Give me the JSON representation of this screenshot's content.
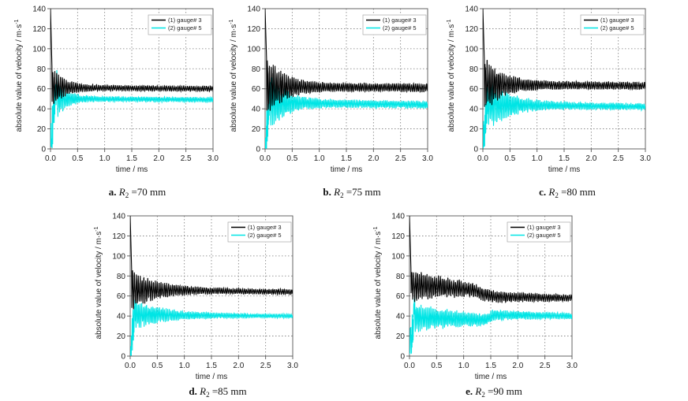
{
  "chart_data": [
    {
      "type": "line",
      "panel": "a",
      "caption": {
        "letter": "a.",
        "var": "R",
        "sub": "2",
        "text": " =70  mm"
      },
      "xlabel": "time / ms",
      "ylabel": "absolute value of velocity / m·s",
      "ylabel_sup": "-1",
      "xlim": [
        0,
        3.0
      ],
      "ylim": [
        0,
        140
      ],
      "xticks": [
        "0.0",
        "0.5",
        "1.0",
        "1.5",
        "2.0",
        "2.5",
        "3.0"
      ],
      "yticks": [
        "0",
        "20",
        "40",
        "60",
        "80",
        "100",
        "120",
        "140"
      ],
      "legend_position": "top-right",
      "series": [
        {
          "name": "(1) gauge# 3",
          "color": "#000000",
          "peak": 140,
          "steady": [
            [
              0.3,
              61
            ],
            [
              3.0,
              60
            ]
          ],
          "osc": 9,
          "decay": 0.22,
          "period": 0.035
        },
        {
          "name": "(2) gauge# 5",
          "color": "#00e5e5",
          "peak": 70,
          "rise": 0.12,
          "steady": [
            [
              0.3,
              50
            ],
            [
              3.0,
              49
            ]
          ],
          "osc": 8,
          "decay": 0.2,
          "period": 0.03
        }
      ]
    },
    {
      "type": "line",
      "panel": "b",
      "caption": {
        "letter": "b.",
        "var": "R",
        "sub": "2",
        "text": " =75  mm"
      },
      "xlabel": "time / ms",
      "ylabel": "absolute value of velocity / m·s",
      "ylabel_sup": "-1",
      "xlim": [
        0,
        3.0
      ],
      "ylim": [
        0,
        140
      ],
      "xticks": [
        "0.0",
        "0.5",
        "1.0",
        "1.5",
        "2.0",
        "2.5",
        "3.0"
      ],
      "yticks": [
        "0",
        "20",
        "40",
        "60",
        "80",
        "100",
        "120",
        "140"
      ],
      "legend_position": "top-right",
      "series": [
        {
          "name": "(1) gauge# 3",
          "color": "#000000",
          "peak": 140,
          "steady": [
            [
              0.3,
              62
            ],
            [
              3.0,
              61
            ]
          ],
          "osc": 14,
          "decay": 0.3,
          "period": 0.035
        },
        {
          "name": "(2) gauge# 5",
          "color": "#00e5e5",
          "peak": 58,
          "rise": 0.1,
          "steady": [
            [
              0.3,
              46
            ],
            [
              3.0,
              44
            ]
          ],
          "osc": 12,
          "decay": 0.3,
          "period": 0.03
        }
      ]
    },
    {
      "type": "line",
      "panel": "c",
      "caption": {
        "letter": "c.",
        "var": "R",
        "sub": "2",
        "text": " =80  mm"
      },
      "xlabel": "time / ms",
      "ylabel": "absolute value of velocity / m·s",
      "ylabel_sup": "-1",
      "xlim": [
        0,
        3.0
      ],
      "ylim": [
        0,
        140
      ],
      "xticks": [
        "0.0",
        "0.5",
        "1.0",
        "1.5",
        "2.0",
        "2.5",
        "3.0"
      ],
      "yticks": [
        "0",
        "20",
        "40",
        "60",
        "80",
        "100",
        "120",
        "140"
      ],
      "legend_position": "top-right",
      "series": [
        {
          "name": "(1) gauge# 3",
          "color": "#000000",
          "peak": 140,
          "steady": [
            [
              0.3,
              64
            ],
            [
              3.0,
              63
            ]
          ],
          "osc": 12,
          "decay": 0.35,
          "period": 0.035
        },
        {
          "name": "(2) gauge# 5",
          "color": "#00e5e5",
          "peak": 58,
          "rise": 0.1,
          "steady": [
            [
              0.3,
              44
            ],
            [
              3.0,
              42
            ]
          ],
          "osc": 11,
          "decay": 0.4,
          "period": 0.03
        }
      ]
    },
    {
      "type": "line",
      "panel": "d",
      "caption": {
        "letter": "d.",
        "var": "R",
        "sub": "2",
        "text": " =85  mm"
      },
      "xlabel": "time / ms",
      "ylabel": "absolute value of velocity / m·s",
      "ylabel_sup": "-1",
      "xlim": [
        0,
        3.0
      ],
      "ylim": [
        0,
        140
      ],
      "xticks": [
        "0.0",
        "0.5",
        "1.0",
        "1.5",
        "2.0",
        "2.5",
        "3.0"
      ],
      "yticks": [
        "0",
        "20",
        "40",
        "60",
        "80",
        "100",
        "120",
        "140"
      ],
      "legend_position": "top-right",
      "series": [
        {
          "name": "(1) gauge# 3",
          "color": "#000000",
          "peak": 140,
          "steady": [
            [
              0.3,
              66
            ],
            [
              3.0,
              64
            ]
          ],
          "osc": 9,
          "decay": 0.45,
          "period": 0.035
        },
        {
          "name": "(2) gauge# 5",
          "color": "#00e5e5",
          "peak": 52,
          "rise": 0.1,
          "steady": [
            [
              0.3,
              41
            ],
            [
              3.0,
              40
            ]
          ],
          "osc": 6,
          "decay": 0.6,
          "period": 0.03
        }
      ]
    },
    {
      "type": "line",
      "panel": "e",
      "caption": {
        "letter": "e.",
        "var": "R",
        "sub": "2",
        "text": " =90  mm"
      },
      "xlabel": "time / ms",
      "ylabel": "absolute value of velocity / m·s",
      "ylabel_sup": "-1",
      "xlim": [
        0,
        3.0
      ],
      "ylim": [
        0,
        140
      ],
      "xticks": [
        "0.0",
        "0.5",
        "1.0",
        "1.5",
        "2.0",
        "2.5",
        "3.0"
      ],
      "yticks": [
        "0",
        "20",
        "40",
        "60",
        "80",
        "100",
        "120",
        "140"
      ],
      "legend_position": "top-right",
      "series": [
        {
          "name": "(1) gauge# 3",
          "color": "#000000",
          "peak": 140,
          "steady": [
            [
              0.3,
              70
            ],
            [
              1.2,
              66
            ],
            [
              1.35,
              62
            ],
            [
              1.6,
              59
            ],
            [
              3.0,
              58
            ]
          ],
          "osc": 7,
          "decay": 1.2,
          "period": 0.035
        },
        {
          "name": "(2) gauge# 5",
          "color": "#00e5e5",
          "peak": 50,
          "rise": 0.1,
          "steady": [
            [
              0.3,
              38
            ],
            [
              1.4,
              36
            ],
            [
              1.55,
              41
            ],
            [
              3.0,
              40
            ]
          ],
          "osc": 6,
          "decay": 1.2,
          "period": 0.03
        }
      ]
    }
  ]
}
